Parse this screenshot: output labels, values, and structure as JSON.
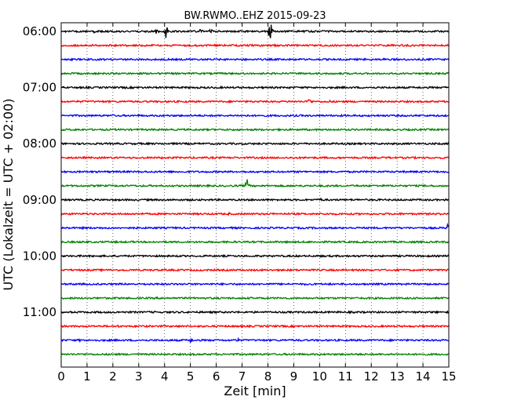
{
  "chart_data": {
    "type": "line",
    "title": "BW.RWMO..EHZ 2015-09-23",
    "xlabel": "Zeit  [min]",
    "ylabel": "UTC (Lokalzeit = UTC + 02:00)",
    "xlim": [
      0,
      15
    ],
    "x_ticks": [
      0,
      1,
      2,
      3,
      4,
      5,
      6,
      7,
      8,
      9,
      10,
      11,
      12,
      13,
      14,
      15
    ],
    "x_tick_labels": [
      "0",
      "1",
      "2",
      "3",
      "4",
      "5",
      "6",
      "7",
      "8",
      "9",
      "10",
      "11",
      "12",
      "13",
      "14",
      "15"
    ],
    "y_tick_labels": [
      "06:00",
      "07:00",
      "08:00",
      "09:00",
      "10:00",
      "11:00"
    ],
    "grid": "vertical dotted",
    "trace_interval_min": 15,
    "trace_colors": [
      "#000000",
      "#ff0000",
      "#0000ff",
      "#008000"
    ],
    "traces": [
      {
        "start": "06:00",
        "events": [
          {
            "x": 1.3,
            "amp": 0.15
          },
          {
            "x": 3.7,
            "amp": 0.25
          },
          {
            "x": 4.05,
            "amp": 0.55
          },
          {
            "x": 5.4,
            "amp": 0.2
          },
          {
            "x": 5.8,
            "amp": 0.2
          },
          {
            "x": 7.0,
            "amp": 0.15
          },
          {
            "x": 8.1,
            "amp": 0.85
          }
        ]
      },
      {
        "start": "06:15",
        "events": [
          {
            "x": 7.6,
            "amp": 0.1
          }
        ]
      },
      {
        "start": "06:30",
        "events": [
          {
            "x": 12.5,
            "amp": 0.1
          }
        ]
      },
      {
        "start": "06:45",
        "events": []
      },
      {
        "start": "07:00",
        "events": [
          {
            "x": 2.5,
            "amp": 0.1
          }
        ]
      },
      {
        "start": "07:15",
        "events": [
          {
            "x": 9.6,
            "amp": 0.3
          },
          {
            "x": 10.4,
            "amp": 0.1
          }
        ]
      },
      {
        "start": "07:30",
        "events": []
      },
      {
        "start": "07:45",
        "events": []
      },
      {
        "start": "08:00",
        "events": []
      },
      {
        "start": "08:15",
        "events": [
          {
            "x": 9.0,
            "amp": 0.1
          }
        ]
      },
      {
        "start": "08:30",
        "events": [
          {
            "x": 4.1,
            "amp": 0.1
          }
        ]
      },
      {
        "start": "08:45",
        "events": [
          {
            "x": 7.2,
            "amp": 0.5
          }
        ]
      },
      {
        "start": "09:00",
        "events": [
          {
            "x": 10.0,
            "amp": 0.2
          }
        ]
      },
      {
        "start": "09:15",
        "events": [
          {
            "x": 6.5,
            "amp": 0.1
          }
        ]
      },
      {
        "start": "09:30",
        "events": [
          {
            "x": 15.0,
            "amp": 0.7
          }
        ]
      },
      {
        "start": "09:45",
        "events": []
      },
      {
        "start": "10:00",
        "events": [
          {
            "x": 10.0,
            "amp": 0.1
          },
          {
            "x": 14.0,
            "amp": 0.1
          }
        ]
      },
      {
        "start": "10:15",
        "events": []
      },
      {
        "start": "10:30",
        "events": [
          {
            "x": 9.4,
            "amp": 0.1
          }
        ]
      },
      {
        "start": "10:45",
        "events": []
      },
      {
        "start": "11:00",
        "events": [
          {
            "x": 14.6,
            "amp": 0.1
          }
        ]
      },
      {
        "start": "11:15",
        "events": [
          {
            "x": 2.2,
            "amp": 0.1
          },
          {
            "x": 6.7,
            "amp": 0.1
          }
        ]
      },
      {
        "start": "11:30",
        "events": [
          {
            "x": 0.7,
            "amp": 0.12
          },
          {
            "x": 5.0,
            "amp": 0.2
          },
          {
            "x": 6.8,
            "amp": 0.2
          }
        ]
      },
      {
        "start": "11:45",
        "events": [
          {
            "x": 11.5,
            "amp": 0.1
          }
        ]
      }
    ]
  }
}
